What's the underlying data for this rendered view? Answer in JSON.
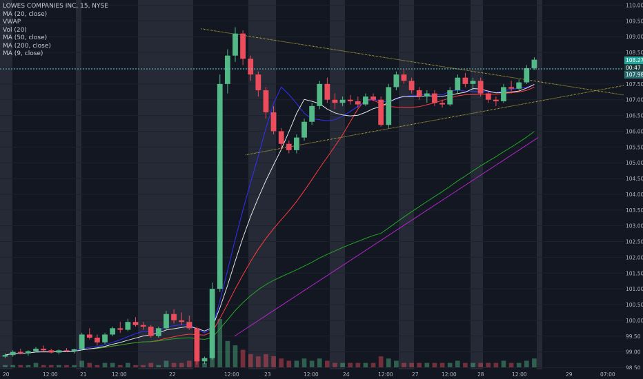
{
  "legend": {
    "title": "LOWES COMPANIES INC, 15, NYSE",
    "studies": [
      "MA (20, close)",
      "VWAP",
      "Vol (20)",
      "MA (50, close)",
      "MA (200, close)",
      "MA (9, close)"
    ]
  },
  "price_badges": {
    "last_price": "108.27",
    "countdown": "00:47",
    "second_price": "107.98"
  },
  "colors": {
    "background": "#131722",
    "up": "#53b987",
    "down": "#eb4d5c",
    "ma20": "#ff3c3c",
    "vwap": "#e6e6e6",
    "ma50": "#24a824",
    "ma200": "#b026c8",
    "ma9": "#3030ff",
    "trendline": "#c7b93a",
    "dotted_level": "#5fd0d8"
  },
  "chart_data": {
    "type": "candlestick",
    "title": "LOWES COMPANIES INC, 15, NYSE",
    "y_ticks": [
      98.5,
      99.0,
      99.5,
      100.0,
      100.5,
      101.0,
      101.5,
      102.0,
      102.5,
      103.0,
      103.5,
      104.0,
      104.5,
      105.0,
      105.5,
      106.0,
      106.5,
      107.0,
      107.5,
      108.0,
      108.5,
      109.0,
      109.5,
      110.0
    ],
    "ylim": [
      98.5,
      110.0
    ],
    "x_ticks": [
      "20",
      "12:00",
      "21",
      "12:00",
      "22",
      "12:00",
      "23",
      "12:00",
      "24",
      "12:00",
      "27",
      "12:00",
      "28",
      "12:00",
      "29",
      "07:00"
    ],
    "sessions": [
      "20",
      "21",
      "22",
      "23",
      "24",
      "27",
      "28"
    ],
    "ohlc": [
      [
        98.85,
        98.95,
        98.8,
        98.9
      ],
      [
        98.9,
        99.05,
        98.85,
        99.0
      ],
      [
        99.0,
        99.1,
        98.92,
        98.95
      ],
      [
        98.95,
        99.05,
        98.88,
        99.02
      ],
      [
        99.02,
        99.15,
        98.98,
        99.1
      ],
      [
        99.1,
        99.2,
        99.0,
        99.05
      ],
      [
        99.05,
        99.1,
        98.95,
        98.98
      ],
      [
        98.98,
        99.08,
        98.92,
        99.05
      ],
      [
        99.05,
        99.12,
        99.0,
        99.02
      ],
      [
        99.02,
        99.1,
        98.95,
        99.08
      ],
      [
        99.08,
        99.6,
        99.05,
        99.55
      ],
      [
        99.55,
        99.75,
        99.4,
        99.45
      ],
      [
        99.45,
        99.55,
        99.2,
        99.3
      ],
      [
        99.3,
        99.6,
        99.25,
        99.55
      ],
      [
        99.55,
        99.8,
        99.5,
        99.75
      ],
      [
        99.75,
        99.95,
        99.6,
        99.7
      ],
      [
        99.7,
        100.05,
        99.65,
        99.95
      ],
      [
        99.95,
        100.1,
        99.8,
        99.85
      ],
      [
        99.85,
        99.95,
        99.7,
        99.8
      ],
      [
        99.8,
        99.85,
        99.45,
        99.5
      ],
      [
        99.5,
        99.8,
        99.45,
        99.75
      ],
      [
        99.75,
        100.3,
        99.7,
        100.2
      ],
      [
        100.2,
        100.35,
        99.9,
        100.0
      ],
      [
        100.0,
        100.25,
        99.85,
        99.95
      ],
      [
        99.95,
        100.15,
        99.7,
        99.75
      ],
      [
        99.75,
        99.8,
        98.6,
        98.7
      ],
      [
        98.7,
        98.85,
        98.62,
        98.8
      ],
      [
        98.8,
        101.2,
        98.75,
        101.0
      ],
      [
        101.0,
        107.8,
        100.9,
        107.5
      ],
      [
        107.5,
        108.6,
        107.2,
        108.4
      ],
      [
        108.4,
        109.3,
        108.2,
        109.1
      ],
      [
        109.1,
        109.2,
        108.1,
        108.3
      ],
      [
        108.3,
        108.4,
        107.6,
        107.8
      ],
      [
        107.8,
        107.9,
        107.1,
        107.3
      ],
      [
        107.3,
        107.4,
        106.4,
        106.6
      ],
      [
        106.6,
        106.8,
        105.9,
        106.0
      ],
      [
        106.0,
        106.1,
        105.4,
        105.6
      ],
      [
        105.6,
        105.7,
        105.3,
        105.4
      ],
      [
        105.4,
        105.9,
        105.3,
        105.8
      ],
      [
        105.8,
        106.4,
        105.7,
        106.3
      ],
      [
        106.3,
        106.9,
        106.2,
        106.8
      ],
      [
        106.8,
        107.6,
        106.7,
        107.5
      ],
      [
        107.5,
        107.7,
        106.9,
        107.0
      ],
      [
        107.0,
        107.2,
        106.7,
        106.9
      ],
      [
        106.9,
        107.1,
        106.8,
        107.0
      ],
      [
        107.0,
        107.15,
        106.85,
        106.95
      ],
      [
        106.95,
        107.1,
        106.75,
        106.85
      ],
      [
        106.85,
        107.2,
        106.8,
        107.1
      ],
      [
        107.1,
        107.2,
        106.95,
        107.0
      ],
      [
        107.0,
        107.1,
        106.15,
        106.2
      ],
      [
        106.2,
        107.5,
        106.1,
        107.4
      ],
      [
        107.4,
        107.9,
        107.3,
        107.8
      ],
      [
        107.8,
        107.95,
        107.5,
        107.6
      ],
      [
        107.6,
        107.7,
        107.2,
        107.3
      ],
      [
        107.3,
        107.4,
        107.0,
        107.1
      ],
      [
        107.1,
        107.3,
        106.9,
        107.2
      ],
      [
        107.2,
        107.3,
        106.8,
        106.9
      ],
      [
        106.9,
        107.0,
        106.75,
        106.85
      ],
      [
        106.85,
        107.4,
        106.8,
        107.3
      ],
      [
        107.3,
        107.8,
        107.2,
        107.7
      ],
      [
        107.7,
        107.85,
        107.4,
        107.5
      ],
      [
        107.5,
        107.7,
        107.3,
        107.6
      ],
      [
        107.6,
        107.7,
        107.1,
        107.2
      ],
      [
        107.2,
        107.3,
        106.9,
        107.0
      ],
      [
        107.0,
        107.1,
        106.8,
        106.95
      ],
      [
        106.95,
        107.5,
        106.9,
        107.4
      ],
      [
        107.4,
        107.6,
        107.2,
        107.35
      ],
      [
        107.35,
        107.65,
        107.3,
        107.55
      ],
      [
        107.55,
        108.1,
        107.5,
        108.0
      ],
      [
        108.0,
        108.35,
        107.95,
        108.27
      ]
    ],
    "volume": [
      1,
      1,
      1,
      1,
      2,
      1,
      1,
      1,
      1,
      1,
      3,
      2,
      1,
      2,
      2,
      1,
      2,
      1,
      1,
      2,
      1,
      3,
      2,
      2,
      3,
      8,
      2,
      6,
      22,
      12,
      10,
      8,
      6,
      5,
      6,
      5,
      4,
      3,
      3,
      4,
      3,
      4,
      3,
      2,
      2,
      2,
      2,
      2,
      2,
      5,
      4,
      3,
      2,
      2,
      2,
      2,
      2,
      2,
      2,
      3,
      2,
      2,
      2,
      2,
      2,
      3,
      2,
      2,
      3,
      4
    ],
    "drawings": {
      "descending_trendline": [
        [
          109.25,
          109.18
        ],
        [
          107.15,
          107.1
        ]
      ],
      "ascending_trendline": [
        [
          105.25,
          105.3
        ],
        [
          107.4,
          107.45
        ]
      ],
      "ma200_line": [
        [
          98.55,
          99.5
        ],
        [
          105.8,
          105.85
        ]
      ]
    },
    "xlabel": "",
    "ylabel": ""
  }
}
